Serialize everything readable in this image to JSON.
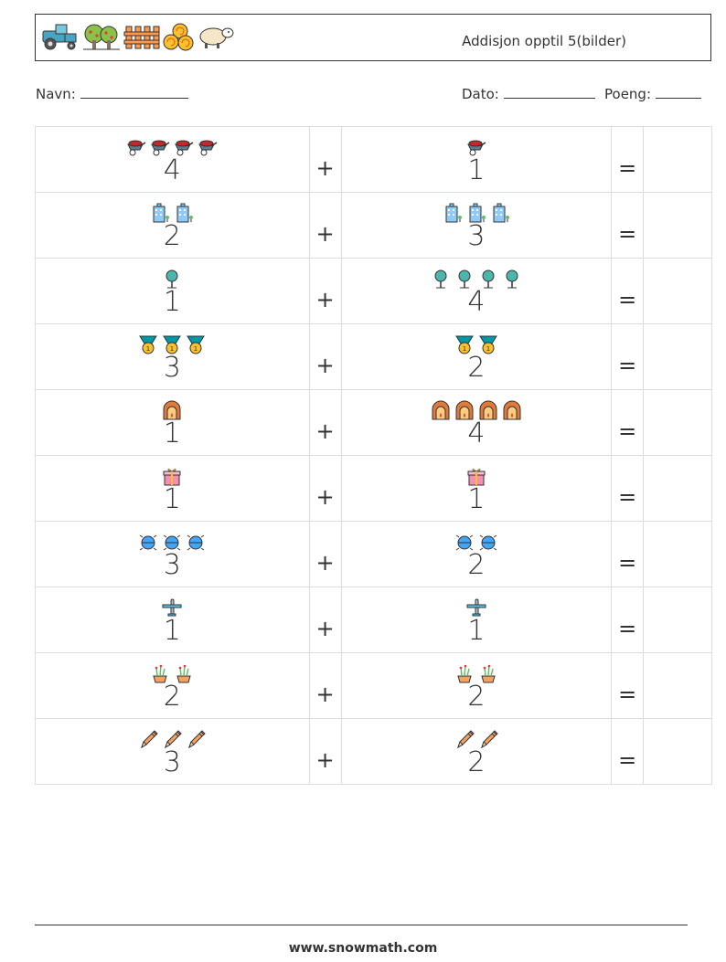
{
  "header": {
    "title": "Addisjon opptil 5(bilder)",
    "icons": [
      "tractor-icon",
      "apple-tree-icon",
      "fence-icon",
      "hay-bale-icon",
      "sheep-icon"
    ]
  },
  "info": {
    "name_label": "Navn:",
    "date_label": "Dato:",
    "score_label": "Poeng:"
  },
  "rows": [
    {
      "icon": "wheelbarrow-icon",
      "left": "4",
      "op": "+",
      "right": "1",
      "eq": "="
    },
    {
      "icon": "building-icon",
      "left": "2",
      "op": "+",
      "right": "3",
      "eq": "="
    },
    {
      "icon": "tree-icon",
      "left": "1",
      "op": "+",
      "right": "4",
      "eq": "="
    },
    {
      "icon": "medal-icon",
      "left": "3",
      "op": "+",
      "right": "2",
      "eq": "="
    },
    {
      "icon": "oven-icon",
      "left": "1",
      "op": "+",
      "right": "4",
      "eq": "="
    },
    {
      "icon": "gift-icon",
      "left": "1",
      "op": "+",
      "right": "1",
      "eq": "="
    },
    {
      "icon": "ball-icon",
      "left": "3",
      "op": "+",
      "right": "2",
      "eq": "="
    },
    {
      "icon": "airplane-icon",
      "left": "1",
      "op": "+",
      "right": "1",
      "eq": "="
    },
    {
      "icon": "plant-pot-icon",
      "left": "2",
      "op": "+",
      "right": "2",
      "eq": "="
    },
    {
      "icon": "pencil-icon",
      "left": "3",
      "op": "+",
      "right": "2",
      "eq": "="
    }
  ],
  "footer": {
    "url": "www.snowmath.com"
  }
}
